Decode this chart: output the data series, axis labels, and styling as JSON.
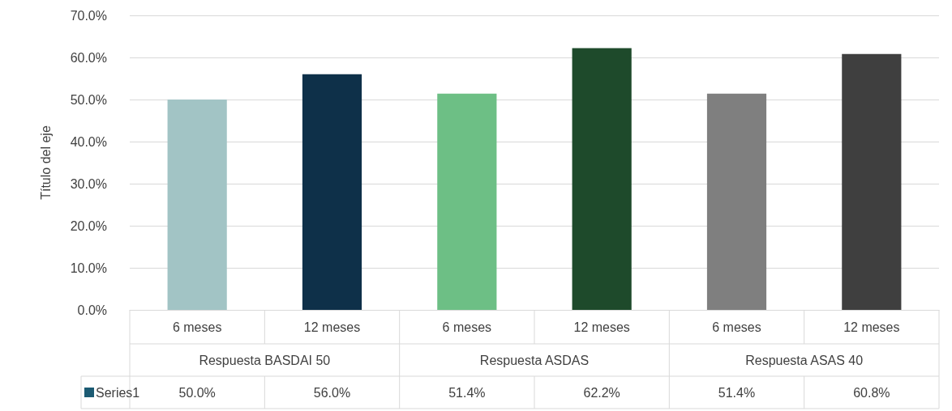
{
  "chart_data": {
    "type": "bar",
    "ylabel": "Título del eje",
    "categories": [
      "6 meses",
      "12 meses",
      "6 meses",
      "12 meses",
      "6 meses",
      "12 meses"
    ],
    "annotations": [
      "Respuesta BASDAI 50",
      "Respuesta ASDAS",
      "Respuesta ASAS 40"
    ],
    "series": [
      {
        "name": "Series1",
        "color": "#1b5a72",
        "values": [
          50.0,
          56.0,
          51.4,
          62.2,
          51.4,
          60.8
        ],
        "colors": [
          "#a2c4c5",
          "#0e3049",
          "#6dbf85",
          "#1e4a2b",
          "#7f7f7f",
          "#3f3f3f"
        ],
        "value_labels": [
          "50.0%",
          "56.0%",
          "51.4%",
          "62.2%",
          "51.4%",
          "60.8%"
        ]
      }
    ],
    "ylim": [
      0,
      70
    ],
    "yticks": [
      {
        "value": 0,
        "label": "0.0%"
      },
      {
        "value": 10,
        "label": "10.0%"
      },
      {
        "value": 20,
        "label": "20.0%"
      },
      {
        "value": 30,
        "label": "30.0%"
      },
      {
        "value": 40,
        "label": "40.0%"
      },
      {
        "value": 50,
        "label": "50.0%"
      },
      {
        "value": 60,
        "label": "60.0%"
      },
      {
        "value": 70,
        "label": "70.0%"
      }
    ],
    "grid": "y",
    "legend": "bottom"
  }
}
